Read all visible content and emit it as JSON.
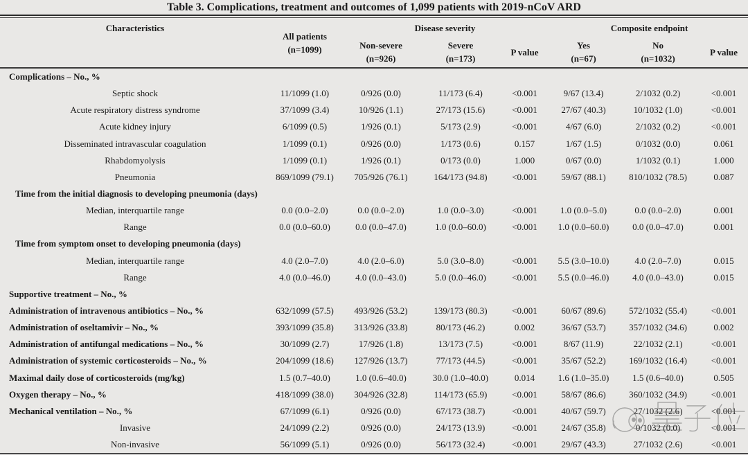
{
  "title": "Table 3. Complications, treatment and outcomes of 1,099 patients with 2019-nCoV ARD",
  "columns": {
    "characteristics": "Characteristics",
    "all_patients": {
      "line1": "All patients",
      "line2": "(n=1099)"
    },
    "disease_severity": "Disease severity",
    "non_severe": {
      "line1": "Non-severe",
      "line2": "(n=926)"
    },
    "severe": {
      "line1": "Severe",
      "line2": "(n=173)"
    },
    "p_value_severity": "P value",
    "composite_endpoint": "Composite endpoint",
    "yes": {
      "line1": "Yes",
      "line2": "(n=67)"
    },
    "no": {
      "line1": "No",
      "line2": "(n=1032)"
    },
    "p_value_composite": "P value"
  },
  "rows": [
    {
      "label": "Complications – No., %",
      "style": "section",
      "values": []
    },
    {
      "label": "Septic shock",
      "style": "item",
      "values": [
        "11/1099 (1.0)",
        "0/926 (0.0)",
        "11/173 (6.4)",
        "<0.001",
        "9/67 (13.4)",
        "2/1032 (0.2)",
        "<0.001"
      ]
    },
    {
      "label": "Acute respiratory distress syndrome",
      "style": "item",
      "values": [
        "37/1099 (3.4)",
        "10/926 (1.1)",
        "27/173 (15.6)",
        "<0.001",
        "27/67 (40.3)",
        "10/1032 (1.0)",
        "<0.001"
      ]
    },
    {
      "label": "Acute kidney injury",
      "style": "item",
      "values": [
        "6/1099 (0.5)",
        "1/926 (0.1)",
        "5/173 (2.9)",
        "<0.001",
        "4/67 (6.0)",
        "2/1032 (0.2)",
        "<0.001"
      ]
    },
    {
      "label": "Disseminated intravascular coagulation",
      "style": "item",
      "values": [
        "1/1099 (0.1)",
        "0/926 (0.0)",
        "1/173 (0.6)",
        "0.157",
        "1/67 (1.5)",
        "0/1032 (0.0)",
        "0.061"
      ]
    },
    {
      "label": "Rhabdomyolysis",
      "style": "item",
      "values": [
        "1/1099 (0.1)",
        "1/926 (0.1)",
        "0/173 (0.0)",
        "1.000",
        "0/67 (0.0)",
        "1/1032 (0.1)",
        "1.000"
      ]
    },
    {
      "label": "Pneumonia",
      "style": "item",
      "values": [
        "869/1099 (79.1)",
        "705/926 (76.1)",
        "164/173 (94.8)",
        "<0.001",
        "59/67 (88.1)",
        "810/1032 (78.5)",
        "0.087"
      ]
    },
    {
      "label": "Time from the initial diagnosis to developing pneumonia (days)",
      "style": "section-indent",
      "values": []
    },
    {
      "label": "Median, interquartile range",
      "style": "item",
      "values": [
        "0.0 (0.0–2.0)",
        "0.0 (0.0–2.0)",
        "1.0 (0.0–3.0)",
        "<0.001",
        "1.0 (0.0–5.0)",
        "0.0 (0.0–2.0)",
        "0.001"
      ]
    },
    {
      "label": "Range",
      "style": "item",
      "values": [
        "0.0 (0.0–60.0)",
        "0.0 (0.0–47.0)",
        "1.0 (0.0–60.0)",
        "<0.001",
        "1.0 (0.0–60.0)",
        "0.0 (0.0–47.0)",
        "0.001"
      ]
    },
    {
      "label": "Time from symptom onset to developing pneumonia (days)",
      "style": "section-indent",
      "values": []
    },
    {
      "label": "Median, interquartile range",
      "style": "item",
      "values": [
        "4.0 (2.0–7.0)",
        "4.0 (2.0–6.0)",
        "5.0 (3.0–8.0)",
        "<0.001",
        "5.5 (3.0–10.0)",
        "4.0 (2.0–7.0)",
        "0.015"
      ]
    },
    {
      "label": "Range",
      "style": "item",
      "values": [
        "4.0 (0.0–46.0)",
        "4.0 (0.0–43.0)",
        "5.0 (0.0–46.0)",
        "<0.001",
        "5.5 (0.0–46.0)",
        "4.0 (0.0–43.0)",
        "0.015"
      ]
    },
    {
      "label": "Supportive treatment – No., %",
      "style": "section",
      "values": []
    },
    {
      "label": "Administration of intravenous antibiotics – No., %",
      "style": "bold",
      "values": [
        "632/1099 (57.5)",
        "493/926 (53.2)",
        "139/173 (80.3)",
        "<0.001",
        "60/67 (89.6)",
        "572/1032 (55.4)",
        "<0.001"
      ]
    },
    {
      "label": "Administration of oseltamivir – No., %",
      "style": "bold",
      "values": [
        "393/1099 (35.8)",
        "313/926 (33.8)",
        "80/173 (46.2)",
        "0.002",
        "36/67 (53.7)",
        "357/1032 (34.6)",
        "0.002"
      ]
    },
    {
      "label": "Administration of antifungal medications – No., %",
      "style": "bold",
      "values": [
        "30/1099 (2.7)",
        "17/926 (1.8)",
        "13/173 (7.5)",
        "<0.001",
        "8/67 (11.9)",
        "22/1032 (2.1)",
        "<0.001"
      ]
    },
    {
      "label": "Administration of systemic corticosteroids – No., %",
      "style": "bold",
      "values": [
        "204/1099 (18.6)",
        "127/926 (13.7)",
        "77/173 (44.5)",
        "<0.001",
        "35/67 (52.2)",
        "169/1032 (16.4)",
        "<0.001"
      ]
    },
    {
      "label": "Maximal daily dose of corticosteroids (mg/kg)",
      "style": "bold",
      "values": [
        "1.5 (0.7–40.0)",
        "1.0 (0.6–40.0)",
        "30.0 (1.0–40.0)",
        "0.014",
        "1.6 (1.0–35.0)",
        "1.5 (0.6–40.0)",
        "0.505"
      ]
    },
    {
      "label": "Oxygen therapy – No., %",
      "style": "bold",
      "values": [
        "418/1099 (38.0)",
        "304/926 (32.8)",
        "114/173 (65.9)",
        "<0.001",
        "58/67 (86.6)",
        "360/1032 (34.9)",
        "<0.001"
      ]
    },
    {
      "label": "Mechanical ventilation – No., %",
      "style": "bold",
      "values": [
        "67/1099 (6.1)",
        "0/926 (0.0)",
        "67/173 (38.7)",
        "<0.001",
        "40/67 (59.7)",
        "27/1032 (2.6)",
        "<0.001"
      ]
    },
    {
      "label": "Invasive",
      "style": "item",
      "values": [
        "24/1099 (2.2)",
        "0/926 (0.0)",
        "24/173 (13.9)",
        "<0.001",
        "24/67 (35.8)",
        "0/1032 (0.0)",
        "<0.001"
      ]
    },
    {
      "label": "Non-invasive",
      "style": "item",
      "values": [
        "56/1099 (5.1)",
        "0/926 (0.0)",
        "56/173 (32.4)",
        "<0.001",
        "29/67 (43.3)",
        "27/1032 (2.6)",
        "<0.001"
      ]
    }
  ],
  "watermark": {
    "text": "量子位"
  }
}
